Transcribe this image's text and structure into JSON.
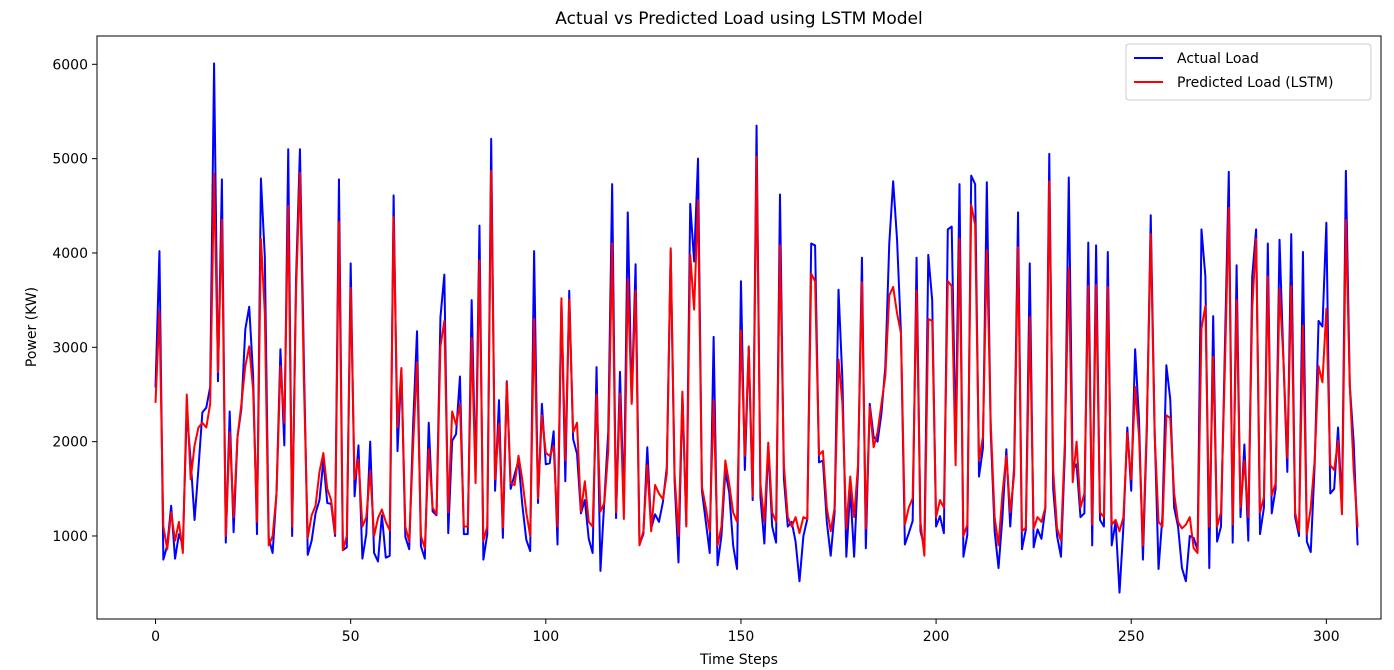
{
  "chart_data": {
    "type": "line",
    "title": "Actual vs Predicted Load using LSTM Model",
    "xlabel": "Time Steps",
    "ylabel": "Power (KW)",
    "xlim": [
      -15,
      314
    ],
    "ylim": [
      120,
      6300
    ],
    "xticks": [
      0,
      50,
      100,
      150,
      200,
      250,
      300
    ],
    "yticks": [
      1000,
      2000,
      3000,
      4000,
      5000,
      6000
    ],
    "xtick_labels": [
      "0",
      "50",
      "100",
      "150",
      "200",
      "250",
      "300"
    ],
    "ytick_labels": [
      "1000",
      "2000",
      "3000",
      "4000",
      "5000",
      "6000"
    ],
    "grid": false,
    "legend": "top-right",
    "series": [
      {
        "name": "Actual Load",
        "color": "#0000ff",
        "x_start": 0,
        "values": [
          2580,
          4020,
          750,
          900,
          1320,
          760,
          1020,
          900,
          2320,
          1800,
          1170,
          1720,
          2310,
          2360,
          2580,
          6010,
          2640,
          4780,
          930,
          2320,
          1040,
          2050,
          2350,
          3190,
          3430,
          2700,
          1020,
          4790,
          3960,
          980,
          820,
          1460,
          2980,
          1960,
          5100,
          1000,
          3730,
          5100,
          2890,
          800,
          950,
          1240,
          1380,
          1800,
          1350,
          1340,
          1000,
          4780,
          850,
          880,
          3890,
          1420,
          1960,
          760,
          1020,
          2000,
          820,
          730,
          1220,
          770,
          790,
          4610,
          1900,
          2770,
          990,
          860,
          2180,
          3170,
          890,
          760,
          2200,
          1260,
          1220,
          3320,
          3770,
          1030,
          2010,
          2080,
          2690,
          1020,
          1020,
          3500,
          1630,
          4290,
          750,
          1020,
          5210,
          1480,
          2440,
          980,
          2640,
          1500,
          1650,
          1800,
          1320,
          960,
          840,
          4020,
          1350,
          2400,
          1760,
          1770,
          2110,
          910,
          3490,
          1580,
          3600,
          2030,
          1870,
          1240,
          1380,
          970,
          820,
          2790,
          630,
          1380,
          2110,
          4730,
          1190,
          2740,
          1320,
          4430,
          2420,
          3880,
          910,
          1020,
          1940,
          1080,
          1230,
          1150,
          1360,
          1730,
          4020,
          1580,
          720,
          2510,
          1120,
          4520,
          3910,
          5000,
          1480,
          1150,
          820,
          3110,
          690,
          1000,
          1690,
          1460,
          900,
          650,
          3700,
          1700,
          3000,
          1380,
          5350,
          1410,
          920,
          1950,
          1100,
          930,
          4620,
          1610,
          1100,
          1150,
          940,
          520,
          1000,
          1180,
          4100,
          4080,
          1780,
          1800,
          1150,
          790,
          1250,
          3610,
          2650,
          780,
          1500,
          780,
          1700,
          3950,
          870,
          2400,
          2050,
          2000,
          2300,
          2800,
          4100,
          4760,
          4140,
          3150,
          910,
          1030,
          1160,
          3950,
          1050,
          880,
          3980,
          3500,
          1100,
          1210,
          1030,
          4250,
          4280,
          1980,
          4730,
          780,
          1010,
          4820,
          4730,
          1630,
          1930,
          4750,
          2100,
          1050,
          660,
          1200,
          1920,
          1100,
          1740,
          4430,
          860,
          1070,
          3890,
          880,
          1070,
          970,
          1300,
          5050,
          1500,
          1000,
          780,
          1880,
          4800,
          1700,
          1760,
          1200,
          1240,
          4110,
          900,
          4080,
          1170,
          1100,
          4010,
          900,
          1150,
          400,
          1100,
          2150,
          1480,
          2980,
          2230,
          750,
          2120,
          4400,
          2120,
          650,
          1210,
          2810,
          2450,
          1300,
          1100,
          660,
          520,
          1000,
          980,
          850,
          4250,
          3750,
          660,
          3330,
          940,
          1100,
          3000,
          4860,
          930,
          3870,
          1200,
          1970,
          950,
          3750,
          4250,
          1020,
          1300,
          4100,
          1240,
          1500,
          4140,
          2870,
          1680,
          4200,
          1200,
          1000,
          4010,
          940,
          830,
          1750,
          3280,
          3220,
          4320,
          1450,
          1500,
          2150,
          1300,
          4870,
          2600,
          1990,
          910
        ]
      },
      {
        "name": "Predicted Load (LSTM)",
        "color": "#ff0000",
        "x_start": 0,
        "values": [
          2420,
          3380,
          1100,
          860,
          1250,
          950,
          1150,
          820,
          2500,
          1600,
          1960,
          2150,
          2200,
          2150,
          2400,
          4840,
          2740,
          4350,
          1000,
          2100,
          1200,
          2050,
          2400,
          2800,
          3010,
          2550,
          1150,
          4150,
          3360,
          900,
          1000,
          1450,
          2800,
          2200,
          4500,
          1100,
          3600,
          4850,
          2660,
          980,
          1220,
          1320,
          1680,
          1880,
          1500,
          1380,
          1020,
          4330,
          850,
          1000,
          3630,
          1600,
          1810,
          1100,
          1200,
          1690,
          1000,
          1190,
          1280,
          1150,
          1060,
          4380,
          2150,
          2780,
          1100,
          940,
          1960,
          2840,
          1000,
          870,
          1920,
          1300,
          1230,
          3010,
          3280,
          1250,
          2320,
          2180,
          2400,
          1100,
          1100,
          3100,
          1560,
          3920,
          950,
          1100,
          4870,
          1600,
          2190,
          1090,
          2630,
          1560,
          1540,
          1850,
          1590,
          1250,
          1000,
          3300,
          1400,
          2280,
          1880,
          1850,
          1950,
          1100,
          3520,
          1800,
          3510,
          2100,
          2200,
          1260,
          1580,
          1150,
          1100,
          2500,
          1260,
          1350,
          1900,
          4100,
          1250,
          2510,
          1180,
          3720,
          2400,
          3600,
          900,
          1050,
          1750,
          1050,
          1540,
          1450,
          1390,
          1660,
          4050,
          1650,
          1000,
          2530,
          1100,
          3980,
          3400,
          4560,
          1520,
          1300,
          1050,
          2440,
          900,
          1100,
          1800,
          1550,
          1250,
          1150,
          3180,
          1850,
          3010,
          1420,
          5020,
          1550,
          1150,
          1990,
          1250,
          1150,
          4080,
          1750,
          1200,
          1100,
          1200,
          1030,
          1200,
          1180,
          3780,
          3700,
          1860,
          1900,
          1300,
          1050,
          1300,
          2870,
          2400,
          1080,
          1630,
          1200,
          1750,
          3690,
          1080,
          2370,
          1940,
          2100,
          2400,
          2700,
          3550,
          3640,
          3360,
          3150,
          1120,
          1300,
          1400,
          3600,
          1150,
          790,
          3300,
          3280,
          1200,
          1380,
          1300,
          3700,
          3650,
          1750,
          4150,
          1000,
          1120,
          4510,
          4300,
          1800,
          2050,
          4030,
          2200,
          1200,
          900,
          1450,
          1850,
          1250,
          1650,
          4060,
          1050,
          1090,
          3320,
          1080,
          1200,
          1150,
          1300,
          4760,
          1700,
          1080,
          950,
          2000,
          3840,
          1570,
          2000,
          1300,
          1450,
          3650,
          1120,
          3660,
          1250,
          1200,
          3640,
          1120,
          1170,
          1050,
          1200,
          2090,
          1600,
          2580,
          2060,
          900,
          2190,
          4200,
          2080,
          1150,
          1100,
          2280,
          2250,
          1450,
          1150,
          1080,
          1120,
          1200,
          870,
          820,
          3200,
          3440,
          1100,
          2900,
          1100,
          1250,
          2780,
          4480,
          1120,
          3500,
          1300,
          1800,
          1200,
          3410,
          4150,
          1250,
          1410,
          3750,
          1430,
          1560,
          3620,
          2870,
          1830,
          3650,
          1250,
          1050,
          3230,
          1020,
          1300,
          1800,
          2800,
          2630,
          3410,
          1750,
          1700,
          2010,
          1230,
          4350,
          2600,
          1700,
          1100
        ]
      }
    ]
  }
}
